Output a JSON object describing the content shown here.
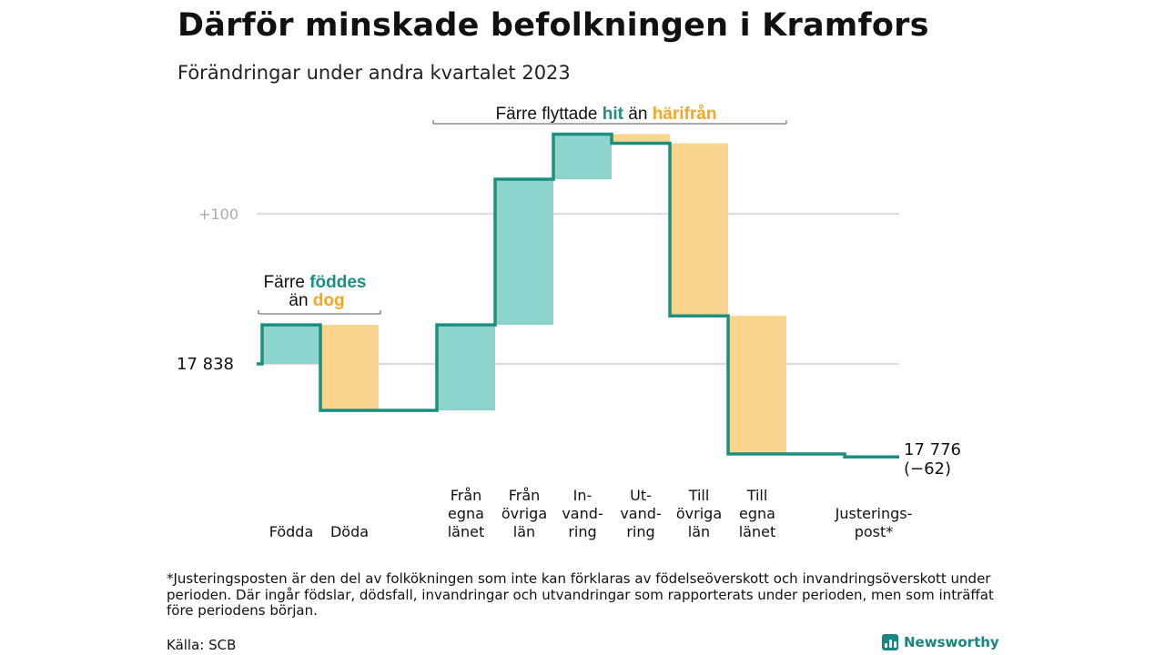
{
  "header": {
    "title": "Därför minskade befolkningen i Kramfors",
    "subtitle": "Förändringar under andra kvartalet 2023"
  },
  "colors": {
    "teal": "#1a8f82",
    "teal_fill": "#8dd5cc",
    "orange": "#f5a623",
    "orange_fill": "#fad58e",
    "grid": "#dddddd"
  },
  "annotations": {
    "births": {
      "line1_a": "Färre",
      "line1_b": "föddes",
      "line2_a": "än",
      "line2_b": "dog"
    },
    "moves": {
      "a": "Färre flyttade",
      "b": "hit",
      "c": "än",
      "d": "härifrån"
    }
  },
  "chart_data": {
    "type": "waterfall",
    "start_value": 17838,
    "start_label": "17  838",
    "end_label_line1": "17 776",
    "end_label_line2": "(−62)",
    "y_ticks": [
      {
        "offset": 100,
        "label": "+100"
      }
    ],
    "steps": [
      {
        "label": [
          "Födda"
        ],
        "delta": 26,
        "kind": "in"
      },
      {
        "label": [
          "Döda"
        ],
        "delta": -57,
        "kind": "out"
      },
      {
        "label": [
          "Från",
          "egna",
          "länet"
        ],
        "delta": 57,
        "kind": "in"
      },
      {
        "label": [
          "Från",
          "övriga",
          "län"
        ],
        "delta": 97,
        "kind": "in"
      },
      {
        "label": [
          "In-",
          "vand-",
          "ring"
        ],
        "delta": 30,
        "kind": "in"
      },
      {
        "label": [
          "Ut-",
          "vand-",
          "ring"
        ],
        "delta": -6,
        "kind": "out"
      },
      {
        "label": [
          "Till",
          "övriga",
          "län"
        ],
        "delta": -115,
        "kind": "out"
      },
      {
        "label": [
          "Till",
          "egna",
          "länet"
        ],
        "delta": -92,
        "kind": "out"
      },
      {
        "label": [
          "Justerings-",
          "post*"
        ],
        "delta": -2,
        "kind": "adjust"
      }
    ]
  },
  "footnote": "*Justeringsposten är den del av folkökningen som inte kan förklaras av födelseöverskott och invandringsöverskott under perioden. Där ingår födslar, dödsfall, invandringar och utvandringar som rapporterats under perioden, men som inträffat före periodens början.",
  "source": "Källa: SCB",
  "brand": "Newsworthy"
}
